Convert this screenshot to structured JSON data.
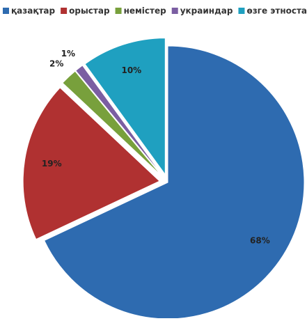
{
  "chart_data": {
    "type": "pie",
    "categories": [
      "қазақтар",
      "орыстар",
      "немістер",
      "украиндар",
      "өзге этностар"
    ],
    "values": [
      68,
      19,
      2,
      1,
      10
    ],
    "value_labels": [
      "68%",
      "19%",
      "2%",
      "1%",
      "10%"
    ],
    "colors": [
      "#2e6bb0",
      "#b03131",
      "#78a03c",
      "#7b5ea2",
      "#1fa0c0"
    ],
    "legend": "top"
  }
}
